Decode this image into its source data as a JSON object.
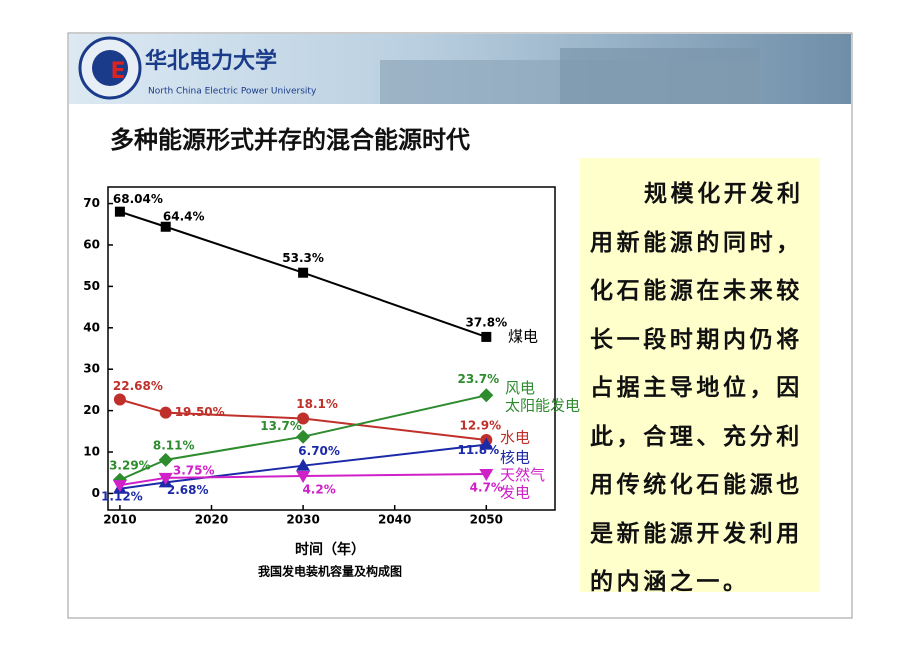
{
  "header": {
    "title": "华北电力大学",
    "subtitle": "North China Electric Power University"
  },
  "slide_title": "多种能源形式并存的混合能源时代",
  "text_box": "规模化开发利用新能源的同时，化石能源在未来较长一段时期内仍将占据主导地位，因此，合理、充分利用传统化石能源也是新能源开发利用的内涵之一。",
  "chart_data": {
    "type": "line",
    "x_label": "时间（年）",
    "caption": "我国发电装机容量及构成图",
    "x": [
      2010,
      2015,
      2030,
      2050
    ],
    "xlim": [
      2008.7,
      2057.5
    ],
    "xticks": [
      2010,
      2020,
      2030,
      2040,
      2050
    ],
    "ylim": [
      -4,
      74
    ],
    "yticks": [
      0,
      10,
      20,
      30,
      40,
      50,
      60,
      70
    ],
    "grid": false,
    "series": [
      {
        "name": "煤电",
        "color": "#000000",
        "marker": "square",
        "values": [
          68.04,
          64.4,
          53.3,
          37.8
        ],
        "value_labels": [
          "68.04%",
          "64.4%",
          "53.3%",
          "37.8%"
        ]
      },
      {
        "name": "水电",
        "color": "#c0302a",
        "marker": "circle",
        "values": [
          22.68,
          19.5,
          18.1,
          12.9
        ],
        "value_labels": [
          "22.68%",
          "19.50%",
          "18.1%",
          "12.9%"
        ]
      },
      {
        "name": "风电\n太阳能发电",
        "color": "#2e8b2e",
        "marker": "diamond",
        "values": [
          3.29,
          8.11,
          13.7,
          23.7
        ],
        "value_labels": [
          "3.29%",
          "8.11%",
          "13.7%",
          "23.7%"
        ]
      },
      {
        "name": "核电",
        "color": "#1c2aa8",
        "marker": "triangle",
        "values": [
          1.12,
          2.68,
          6.7,
          11.8
        ],
        "value_labels": [
          "1.12%",
          "2.68%",
          "6.70%",
          "11.8%"
        ]
      },
      {
        "name": "天然气\n发电",
        "color": "#d020c8",
        "marker": "triangle-down",
        "values": [
          2.0,
          3.75,
          4.2,
          4.7
        ],
        "value_labels": [
          null,
          "3.75%",
          "4.2%",
          "4.7%"
        ]
      }
    ]
  }
}
